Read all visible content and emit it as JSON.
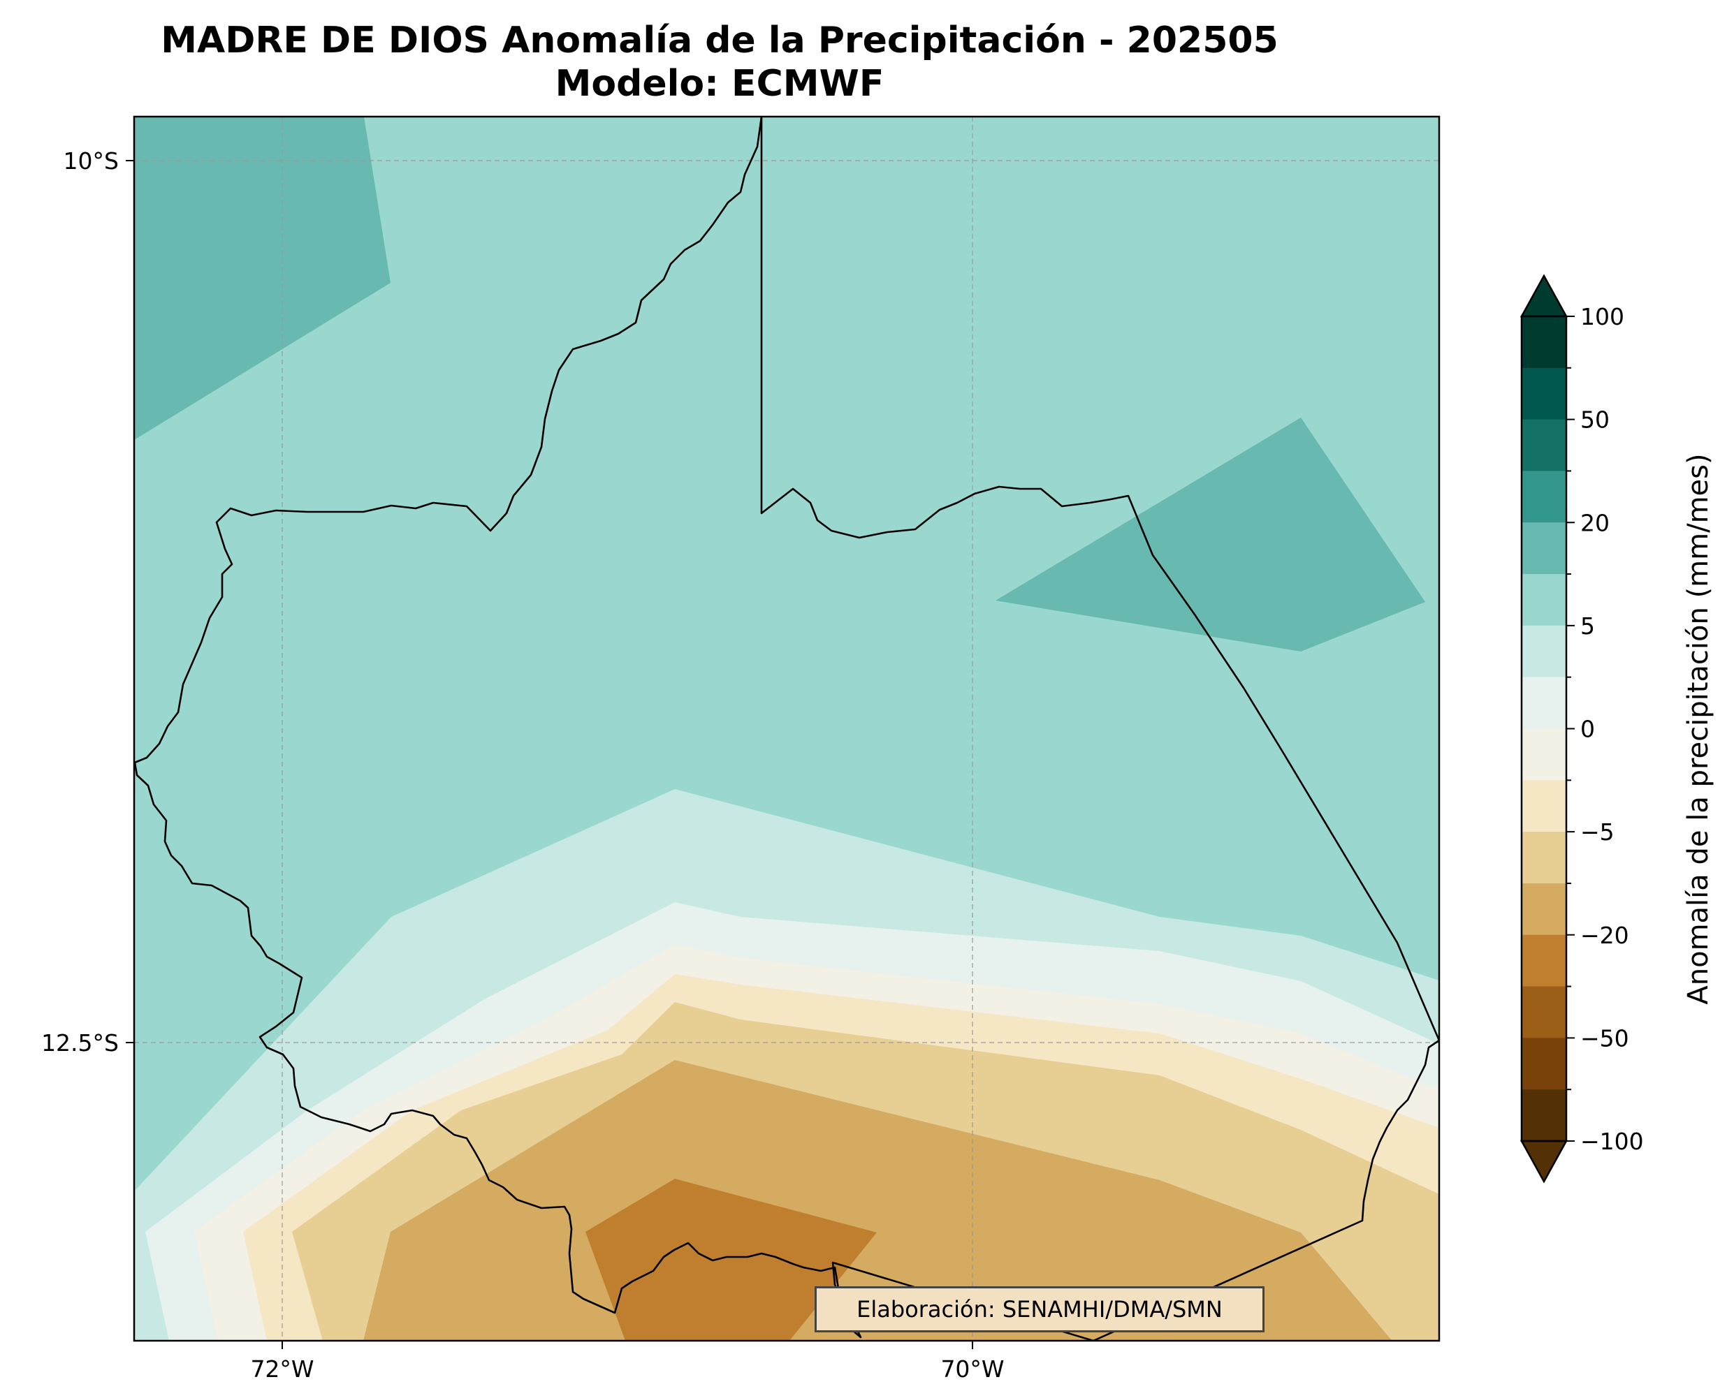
{
  "title": {
    "line1": "MADRE DE DIOS Anomalía de la Precipitación - 202505",
    "line2": "Modelo: ECMWF"
  },
  "map": {
    "lat_labels": [
      "10°S",
      "12.5°S"
    ],
    "lon_labels": [
      "72°W",
      "70°W"
    ],
    "credit": "Elaboración: SENAMHI/DMA/SMN",
    "colors": {
      "lvl_20": "#68b9b0",
      "lvl_5": "#9ad7ce",
      "lvl_2": "#c8e9e3",
      "lvl_0": "#e7f2ef",
      "lvl_m2": "#f3f0e5",
      "lvl_m5": "#f5e7c4",
      "lvl_m10": "#e7cf93",
      "lvl_m20": "#d4ab61",
      "lvl_m30": "#bf7f2f"
    }
  },
  "colorbar": {
    "label": "Anomalía de la precipitación (mm/mes)",
    "tick_labels": [
      "100",
      "50",
      "20",
      "5",
      "0",
      "−5",
      "−20",
      "−50",
      "−100"
    ],
    "colors": [
      "#003b30",
      "#00574d",
      "#137166",
      "#34978d",
      "#68b9b0",
      "#9ad7ce",
      "#c8e9e3",
      "#e7f2ef",
      "#f3f0e5",
      "#f5e7c4",
      "#e7cf93",
      "#d4ab61",
      "#bf7f2f",
      "#9c5f18",
      "#7a420b",
      "#543005"
    ]
  }
}
